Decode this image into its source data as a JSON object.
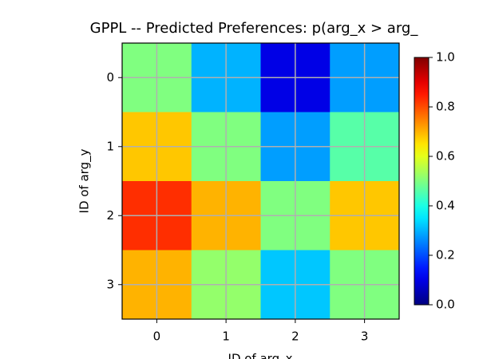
{
  "chart_data": {
    "type": "heatmap",
    "title": "GPPL -- Predicted Preferences: p(arg_x > arg_",
    "x_label": "ID of arg_x",
    "y_label": "ID of arg_y",
    "colormap": "jet",
    "z": [
      [
        0.5,
        0.3,
        0.1,
        0.28
      ],
      [
        0.68,
        0.5,
        0.28,
        0.46
      ],
      [
        0.83,
        0.7,
        0.5,
        0.68
      ],
      [
        0.7,
        0.52,
        0.32,
        0.5
      ]
    ],
    "xlim": [
      -0.5,
      3.5
    ],
    "ylim": [
      3.5,
      -0.5
    ],
    "xticks": [
      0,
      1,
      2,
      3
    ],
    "yticks": [
      0,
      1,
      2,
      3
    ],
    "clim": [
      0,
      1
    ],
    "cticks": [
      {
        "value": 0,
        "label": "0.0"
      },
      0.2,
      0.4,
      0.6,
      0.8,
      {
        "value": 1,
        "label": "1.0"
      }
    ],
    "grid": true,
    "grid_color": "#b0b0b0"
  }
}
